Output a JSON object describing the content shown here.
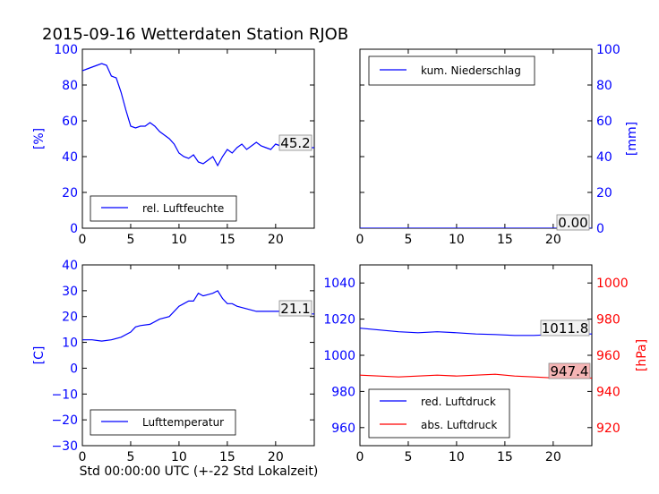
{
  "figure": {
    "title": "2015-09-16 Wetterdaten Station RJOB",
    "footer_label": "Std 00:00:00 UTC (+-22 Std Lokalzeit)"
  },
  "colors": {
    "blue": "#0000ff",
    "red": "#ff0000",
    "black": "#000000",
    "annot_red_bg": "#f5b5b5"
  },
  "chart_data": [
    {
      "id": "humidity",
      "type": "line",
      "ylabel": "[%]",
      "xlim": [
        0,
        24
      ],
      "ylim": [
        0,
        100
      ],
      "xticks": [
        0,
        5,
        10,
        15,
        20
      ],
      "yticks": [
        0,
        20,
        40,
        60,
        80,
        100
      ],
      "tick_color": "#0000ff",
      "legend": {
        "placement": "lower-left",
        "entries": [
          "rel. Luftfeuchte"
        ]
      },
      "annotation": "45.2",
      "series": [
        {
          "name": "rel. Luftfeuchte",
          "color": "#0000ff",
          "x": [
            0,
            0.5,
            1,
            1.5,
            2,
            2.5,
            3,
            3.5,
            4,
            4.5,
            5,
            5.5,
            6,
            6.5,
            7,
            7.5,
            8,
            8.5,
            9,
            9.5,
            10,
            10.5,
            11,
            11.5,
            12,
            12.5,
            13,
            13.5,
            14,
            14.5,
            15,
            15.5,
            16,
            16.5,
            17,
            17.5,
            18,
            18.5,
            19,
            19.5,
            20,
            20.5,
            21,
            21.5,
            22,
            22.5,
            23,
            23.5,
            24
          ],
          "y": [
            88,
            89,
            90,
            91,
            92,
            91,
            85,
            84,
            76,
            66,
            57,
            56,
            57,
            57,
            59,
            57,
            54,
            52,
            50,
            47,
            42,
            40,
            39,
            41,
            37,
            36,
            38,
            40,
            35,
            40,
            44,
            42,
            45,
            47,
            44,
            46,
            48,
            46,
            45,
            44,
            47,
            46,
            45,
            45,
            46,
            47,
            46,
            45,
            45
          ]
        }
      ]
    },
    {
      "id": "precip",
      "type": "line",
      "ylabel": "[mm]",
      "xlim": [
        0,
        24
      ],
      "ylim": [
        0,
        100
      ],
      "xticks": [
        0,
        5,
        10,
        15,
        20
      ],
      "yticks": [
        0,
        20,
        40,
        60,
        80,
        100
      ],
      "tick_color": "#0000ff",
      "legend": {
        "placement": "top-left",
        "entries": [
          "kum. Niederschlag"
        ]
      },
      "annotation": "0.00",
      "series": [
        {
          "name": "kum. Niederschlag",
          "color": "#0000ff",
          "x": [
            0,
            24
          ],
          "y": [
            0,
            0
          ]
        }
      ]
    },
    {
      "id": "temperature",
      "type": "line",
      "ylabel": "[C]",
      "xlim": [
        0,
        24
      ],
      "ylim": [
        -30,
        40
      ],
      "xticks": [
        0,
        5,
        10,
        15,
        20
      ],
      "yticks": [
        -30,
        -20,
        -10,
        0,
        10,
        20,
        30,
        40
      ],
      "tick_color": "#0000ff",
      "legend": {
        "placement": "lower-left",
        "entries": [
          "Lufttemperatur"
        ]
      },
      "annotation": "21.1",
      "series": [
        {
          "name": "Lufttemperatur",
          "color": "#0000ff",
          "x": [
            0,
            1,
            2,
            3,
            4,
            5,
            5.5,
            6,
            7,
            8,
            9,
            10,
            10.5,
            11,
            11.5,
            12,
            12.5,
            13,
            13.5,
            14,
            14.5,
            15,
            15.5,
            16,
            17,
            18,
            19,
            20,
            21,
            22,
            23,
            24
          ],
          "y": [
            11,
            11,
            10.5,
            11,
            12,
            14,
            16,
            16.5,
            17,
            19,
            20,
            24,
            25,
            26,
            26,
            29,
            28,
            28.5,
            29,
            30,
            27,
            25,
            25,
            24,
            23,
            22,
            22,
            22,
            22,
            21,
            21,
            21
          ]
        }
      ]
    },
    {
      "id": "pressure",
      "type": "line",
      "ylabel": "[hPa]",
      "xlim": [
        0,
        24
      ],
      "ylim": [
        950,
        1050
      ],
      "ylim_right": [
        910,
        1010
      ],
      "xticks": [
        0,
        5,
        10,
        15,
        20
      ],
      "yticks": [
        960,
        980,
        1000,
        1020,
        1040
      ],
      "yticks_right": [
        920,
        940,
        960,
        980,
        1000
      ],
      "tick_color": "#0000ff",
      "tick_color_right": "#ff0000",
      "legend": {
        "placement": "lower-left",
        "entries": [
          "red. Luftdruck",
          "abs. Luftdruck"
        ]
      },
      "annotations": [
        "1011.8",
        "947.4"
      ],
      "series": [
        {
          "name": "red. Luftdruck",
          "color": "#0000ff",
          "axis": "left",
          "x": [
            0,
            2,
            4,
            6,
            8,
            10,
            12,
            14,
            16,
            18,
            20,
            22,
            24
          ],
          "y": [
            1015,
            1014,
            1013,
            1012.5,
            1013,
            1012.5,
            1011.8,
            1011.5,
            1011,
            1011,
            1011.5,
            1011.8,
            1011.8
          ]
        },
        {
          "name": "abs. Luftdruck",
          "color": "#ff0000",
          "axis": "right",
          "x": [
            0,
            2,
            4,
            6,
            8,
            10,
            12,
            14,
            16,
            18,
            20,
            22,
            24
          ],
          "y": [
            949,
            948.5,
            948,
            948.5,
            949,
            948.5,
            949,
            949.5,
            948.5,
            948,
            947.5,
            947.4,
            947.4
          ]
        }
      ]
    }
  ]
}
